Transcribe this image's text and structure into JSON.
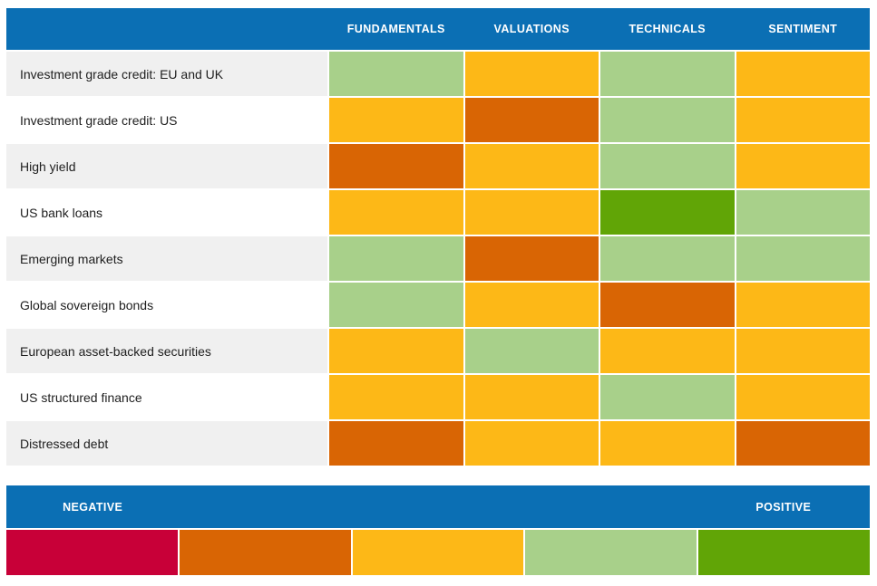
{
  "palette": {
    "blue": "#0B6FB4",
    "negative_2": "#C80038",
    "negative_1": "#D96504",
    "neutral": "#FDB817",
    "positive_1": "#A8D08A",
    "positive_2": "#61A506",
    "row_alt_bg": "#F0F0F0",
    "row_bg": "#FFFFFF"
  },
  "table": {
    "columns": [
      "FUNDAMENTALS",
      "VALUATIONS",
      "TECHNICALS",
      "SENTIMENT"
    ],
    "rows": [
      {
        "label": "Investment grade credit: EU and UK",
        "ratings": [
          "positive_1",
          "neutral",
          "positive_1",
          "neutral"
        ]
      },
      {
        "label": "Investment grade credit: US",
        "ratings": [
          "neutral",
          "negative_1",
          "positive_1",
          "neutral"
        ]
      },
      {
        "label": "High yield",
        "ratings": [
          "negative_1",
          "neutral",
          "positive_1",
          "neutral"
        ]
      },
      {
        "label": "US bank loans",
        "ratings": [
          "neutral",
          "neutral",
          "positive_2",
          "positive_1"
        ]
      },
      {
        "label": "Emerging markets",
        "ratings": [
          "positive_1",
          "negative_1",
          "positive_1",
          "positive_1"
        ]
      },
      {
        "label": "Global sovereign bonds",
        "ratings": [
          "positive_1",
          "neutral",
          "negative_1",
          "neutral"
        ]
      },
      {
        "label": "European asset-backed securities",
        "ratings": [
          "neutral",
          "positive_1",
          "neutral",
          "neutral"
        ]
      },
      {
        "label": "US structured finance",
        "ratings": [
          "neutral",
          "neutral",
          "positive_1",
          "neutral"
        ]
      },
      {
        "label": "Distressed debt",
        "ratings": [
          "negative_1",
          "neutral",
          "neutral",
          "negative_1"
        ]
      }
    ]
  },
  "legend": {
    "negative_label": "NEGATIVE",
    "positive_label": "POSITIVE",
    "scale": [
      "negative_2",
      "negative_1",
      "neutral",
      "positive_1",
      "positive_2"
    ]
  },
  "chart_data": {
    "type": "heatmap",
    "title": "",
    "columns": [
      "FUNDAMENTALS",
      "VALUATIONS",
      "TECHNICALS",
      "SENTIMENT"
    ],
    "rows": [
      "Investment grade credit: EU and UK",
      "Investment grade credit: US",
      "High yield",
      "US bank loans",
      "Emerging markets",
      "Global sovereign bonds",
      "European asset-backed securities",
      "US structured finance",
      "Distressed debt"
    ],
    "value_scale": {
      "-2": "strong negative",
      "-1": "negative",
      "0": "neutral",
      "1": "positive",
      "2": "strong positive"
    },
    "values": [
      [
        1,
        0,
        1,
        0
      ],
      [
        0,
        -1,
        1,
        0
      ],
      [
        -1,
        0,
        1,
        0
      ],
      [
        0,
        0,
        2,
        1
      ],
      [
        1,
        -1,
        1,
        1
      ],
      [
        1,
        0,
        -1,
        0
      ],
      [
        0,
        1,
        0,
        0
      ],
      [
        0,
        0,
        1,
        0
      ],
      [
        -1,
        0,
        0,
        -1
      ]
    ],
    "legend": {
      "left_label": "NEGATIVE",
      "right_label": "POSITIVE",
      "scale_colors": [
        "#C80038",
        "#D96504",
        "#FDB817",
        "#A8D08A",
        "#61A506"
      ]
    }
  }
}
